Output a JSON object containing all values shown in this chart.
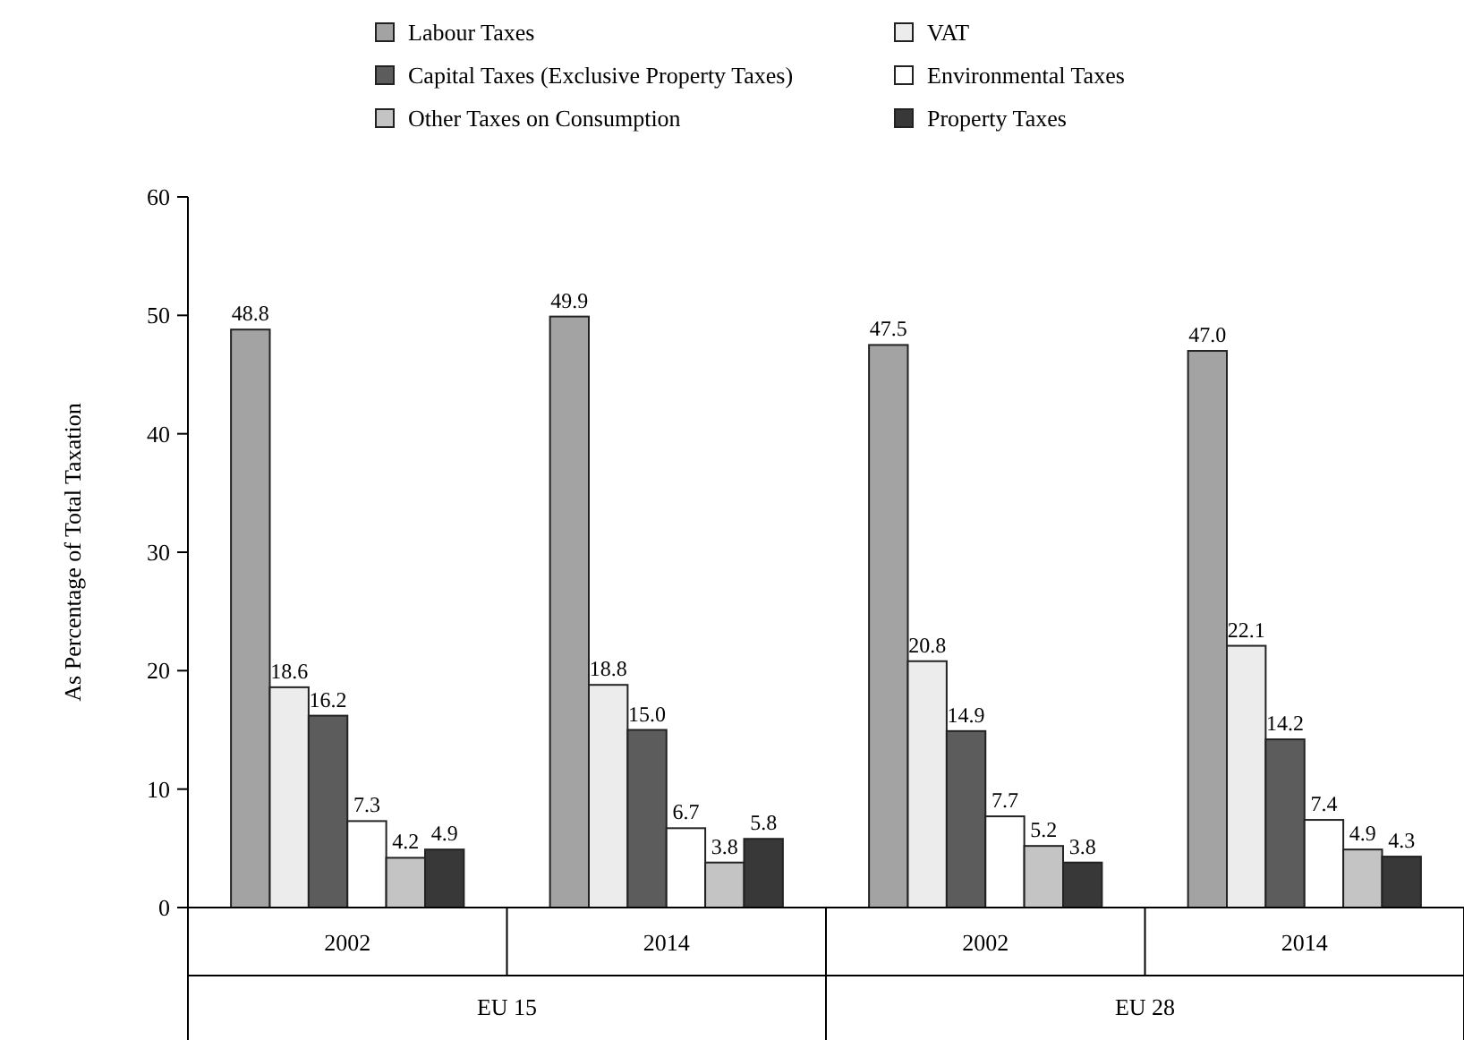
{
  "chart_data": {
    "type": "bar",
    "ylabel": "As Percentage of Total Taxation",
    "categories": [
      "2002",
      "2014",
      "2002",
      "2014"
    ],
    "annotations": [
      "EU 15",
      "EU 28"
    ],
    "series": [
      {
        "name": "Labour Taxes",
        "color": "#a3a3a3",
        "values": [
          48.8,
          49.9,
          47.5,
          47.0
        ],
        "value_labels": [
          "48.8",
          "49.9",
          "47.5",
          "47.0"
        ]
      },
      {
        "name": "VAT",
        "color": "#ececec",
        "values": [
          18.6,
          18.8,
          20.8,
          22.1
        ],
        "value_labels": [
          "18.6",
          "18.8",
          "20.8",
          "22.1"
        ]
      },
      {
        "name": "Capital Taxes (Exclusive Property Taxes)",
        "color": "#5c5c5c",
        "values": [
          16.2,
          15.0,
          14.9,
          14.2
        ],
        "value_labels": [
          "16.2",
          "15.0",
          "14.9",
          "14.2"
        ]
      },
      {
        "name": "Environmental Taxes",
        "color": "#ffffff",
        "values": [
          7.3,
          6.7,
          7.7,
          7.4
        ],
        "value_labels": [
          "7.3",
          "6.7",
          "7.7",
          "7.4"
        ]
      },
      {
        "name": "Other Taxes on Consumption",
        "color": "#c4c4c4",
        "values": [
          4.2,
          3.8,
          5.2,
          4.9
        ],
        "value_labels": [
          "4.2",
          "3.8",
          "5.2",
          "4.9"
        ]
      },
      {
        "name": "Property Taxes",
        "color": "#383838",
        "values": [
          4.9,
          5.8,
          3.8,
          4.3
        ],
        "value_labels": [
          "4.9",
          "5.8",
          "3.8",
          "4.3"
        ]
      }
    ],
    "ylim": [
      0,
      60
    ],
    "yticks": [
      0,
      10,
      20,
      30,
      40,
      50,
      60
    ],
    "grid": false,
    "legend": "top"
  }
}
